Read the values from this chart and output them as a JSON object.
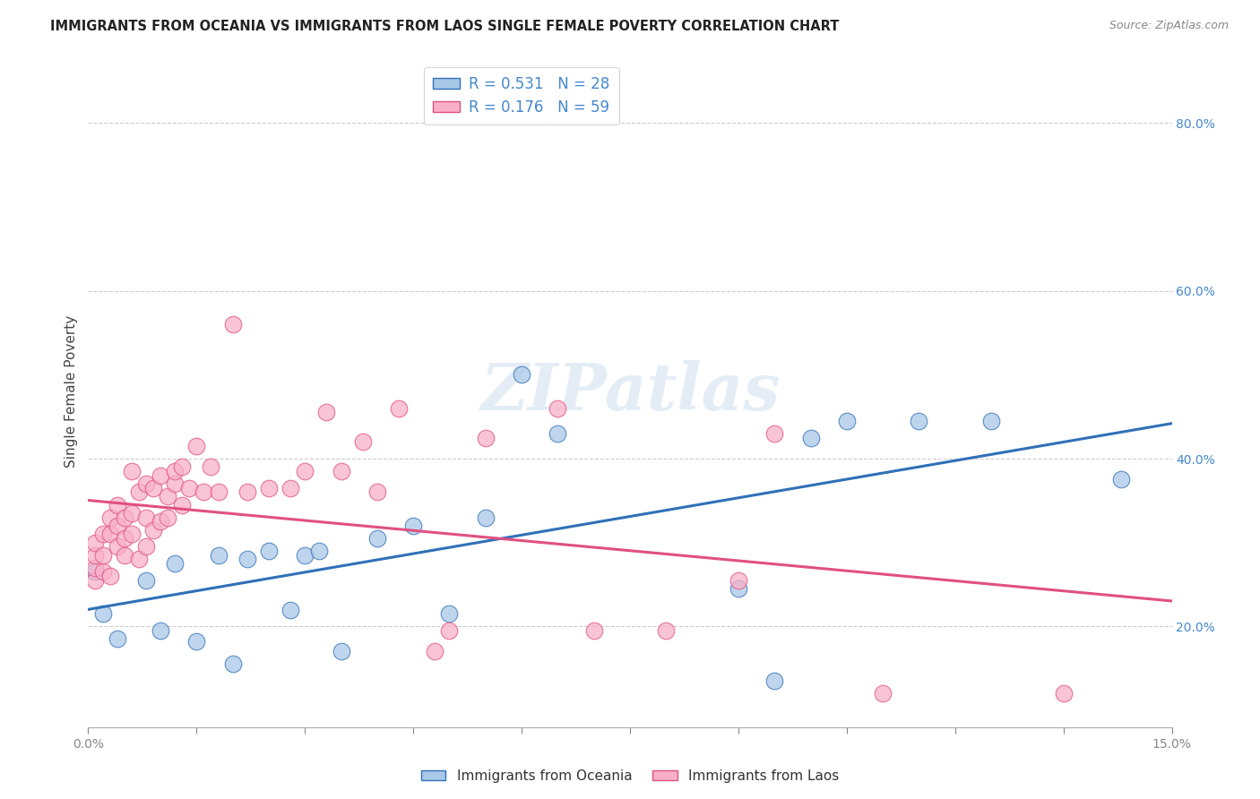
{
  "title": "IMMIGRANTS FROM OCEANIA VS IMMIGRANTS FROM LAOS SINGLE FEMALE POVERTY CORRELATION CHART",
  "source": "Source: ZipAtlas.com",
  "ylabel": "Single Female Poverty",
  "legend_label1": "Immigrants from Oceania",
  "legend_label2": "Immigrants from Laos",
  "r1": 0.531,
  "n1": 28,
  "r2": 0.176,
  "n2": 59,
  "color1": "#a8c8e8",
  "color2": "#f8b0c8",
  "line_color1": "#3070b8",
  "line_color2": "#e05080",
  "xmin": 0.0,
  "xmax": 0.15,
  "ymin": 0.08,
  "ymax": 0.88,
  "background_color": "#ffffff",
  "grid_color": "#cccccc",
  "watermark": "ZIPatlas",
  "title_color": "#222222",
  "source_color": "#888888",
  "tick_color": "#555555",
  "right_tick_color": "#4488cc",
  "oceania_x": [
    0.001,
    0.002,
    0.004,
    0.008,
    0.01,
    0.012,
    0.015,
    0.018,
    0.02,
    0.022,
    0.025,
    0.028,
    0.03,
    0.032,
    0.035,
    0.04,
    0.045,
    0.05,
    0.055,
    0.06,
    0.065,
    0.09,
    0.095,
    0.1,
    0.105,
    0.115,
    0.125,
    0.143
  ],
  "oceania_y": [
    0.265,
    0.215,
    0.185,
    0.255,
    0.195,
    0.275,
    0.182,
    0.285,
    0.155,
    0.28,
    0.29,
    0.22,
    0.285,
    0.29,
    0.17,
    0.305,
    0.32,
    0.215,
    0.33,
    0.5,
    0.43,
    0.245,
    0.135,
    0.425,
    0.445,
    0.445,
    0.445,
    0.375
  ],
  "laos_x": [
    0.001,
    0.001,
    0.001,
    0.001,
    0.002,
    0.002,
    0.002,
    0.003,
    0.003,
    0.003,
    0.004,
    0.004,
    0.004,
    0.005,
    0.005,
    0.005,
    0.006,
    0.006,
    0.006,
    0.007,
    0.007,
    0.008,
    0.008,
    0.008,
    0.009,
    0.009,
    0.01,
    0.01,
    0.011,
    0.011,
    0.012,
    0.012,
    0.013,
    0.013,
    0.014,
    0.015,
    0.016,
    0.017,
    0.018,
    0.02,
    0.022,
    0.025,
    0.028,
    0.03,
    0.033,
    0.035,
    0.038,
    0.04,
    0.043,
    0.048,
    0.05,
    0.055,
    0.065,
    0.07,
    0.08,
    0.09,
    0.095,
    0.11,
    0.135
  ],
  "laos_y": [
    0.255,
    0.27,
    0.285,
    0.3,
    0.265,
    0.285,
    0.31,
    0.26,
    0.31,
    0.33,
    0.295,
    0.32,
    0.345,
    0.285,
    0.305,
    0.33,
    0.31,
    0.335,
    0.385,
    0.28,
    0.36,
    0.295,
    0.33,
    0.37,
    0.315,
    0.365,
    0.325,
    0.38,
    0.33,
    0.355,
    0.37,
    0.385,
    0.345,
    0.39,
    0.365,
    0.415,
    0.36,
    0.39,
    0.36,
    0.56,
    0.36,
    0.365,
    0.365,
    0.385,
    0.455,
    0.385,
    0.42,
    0.36,
    0.46,
    0.17,
    0.195,
    0.425,
    0.46,
    0.195,
    0.195,
    0.255,
    0.43,
    0.12,
    0.12
  ],
  "yticks": [
    0.2,
    0.4,
    0.6,
    0.8
  ],
  "xtick_positions": [
    0.0,
    0.015,
    0.03,
    0.045,
    0.06,
    0.075,
    0.09,
    0.105,
    0.12,
    0.135,
    0.15
  ]
}
